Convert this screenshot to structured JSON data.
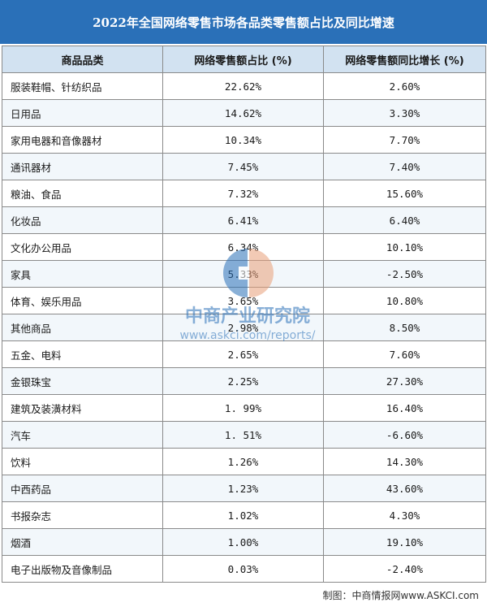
{
  "title": "2022年全国网络零售市场各品类零售额占比及同比增速",
  "chart_data": {
    "type": "table",
    "columns": [
      "商品品类",
      "网络零售额占比 (%)",
      "网络零售额同比增长 (%)"
    ],
    "rows": [
      [
        "服装鞋帽、针纺织品",
        "22.62%",
        "2.60%"
      ],
      [
        "日用品",
        "14.62%",
        "3.30%"
      ],
      [
        "家用电器和音像器材",
        "10.34%",
        "7.70%"
      ],
      [
        "通讯器材",
        "7.45%",
        "7.40%"
      ],
      [
        "粮油、食品",
        "7.32%",
        "15.60%"
      ],
      [
        "化妆品",
        "6.41%",
        "6.40%"
      ],
      [
        "文化办公用品",
        "6.34%",
        "10.10%"
      ],
      [
        "家具",
        "5.33%",
        "-2.50%"
      ],
      [
        "体育、娱乐用品",
        "3.65%",
        "10.80%"
      ],
      [
        "其他商品",
        "2.98%",
        "8.50%"
      ],
      [
        "五金、电料",
        "2.65%",
        "7.60%"
      ],
      [
        "金银珠宝",
        "2.25%",
        "27.30%"
      ],
      [
        "建筑及装潢材料",
        "1. 99%",
        "16.40%"
      ],
      [
        "汽车",
        "1. 51%",
        "-6.60%"
      ],
      [
        "饮料",
        "1.26%",
        "14.30%"
      ],
      [
        "中西药品",
        "1.23%",
        "43.60%"
      ],
      [
        "书报杂志",
        "1.02%",
        "4.30%"
      ],
      [
        "烟酒",
        "1.00%",
        "19.10%"
      ],
      [
        "电子出版物及音像制品",
        "0.03%",
        "-2.40%"
      ]
    ]
  },
  "watermark": {
    "name": "中商产业研究院",
    "url": "www.askci.com/reports/"
  },
  "footer": "制图：中商情报网www.ASKCI.com",
  "colors": {
    "title_bg": "#2a70b8",
    "header_bg": "#d2e2f1",
    "watermark_blue": "#2a70b8",
    "watermark_orange": "#e9a07a"
  }
}
